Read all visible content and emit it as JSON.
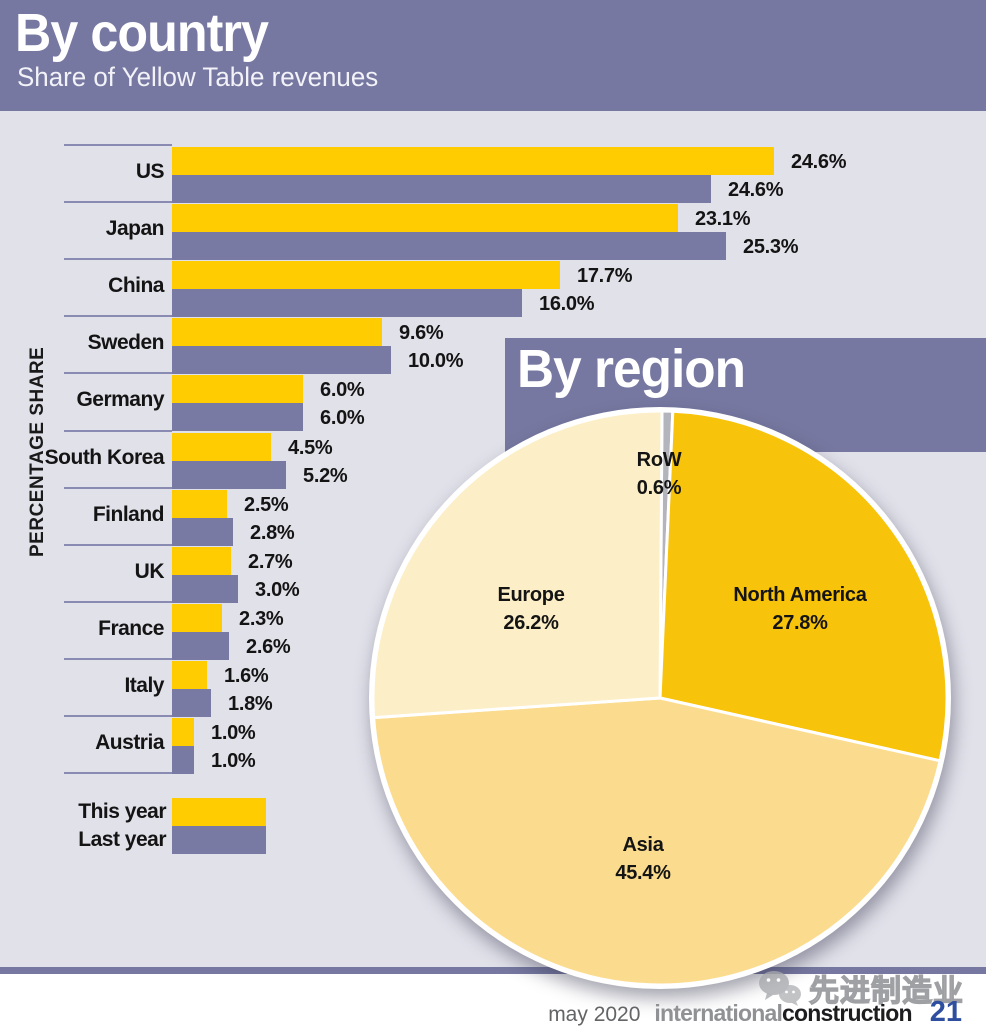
{
  "header": {
    "title": "By country",
    "subtitle": "Share of Yellow Table revenues"
  },
  "region": {
    "title": "By region"
  },
  "bar_chart": {
    "y_axis_label": "PERCENTAGE SHARE",
    "legend": [
      {
        "label": "This year",
        "color": "#ffcc02"
      },
      {
        "label": "Last year",
        "color": "#797aa4"
      }
    ]
  },
  "footer": {
    "date": "may 2020",
    "brand_light": "international",
    "brand_dark": "construction",
    "page_number": "21",
    "watermark_text": "先进制造业"
  },
  "colors": {
    "band_purple": "#7678a1",
    "panel_background": "#e1e1ea",
    "bar_this_year": "#ffcc02",
    "bar_last_year": "#797aa4",
    "separator": "#8a8bb2",
    "pie_north_america": "#f8c30b",
    "pie_asia": "#fbdc8f",
    "pie_europe": "#fceec6",
    "pie_row": "#b4b4bc",
    "page_number_blue": "#2e4f9f"
  },
  "chart_data": [
    {
      "type": "bar",
      "orientation": "horizontal",
      "title": "By country",
      "subtitle": "Share of Yellow Table revenues",
      "ylabel": "PERCENTAGE SHARE",
      "value_format": "percent_one_decimal",
      "categories": [
        "US",
        "Japan",
        "China",
        "Sweden",
        "Germany",
        "South Korea",
        "Finland",
        "UK",
        "France",
        "Italy",
        "Austria"
      ],
      "series": [
        {
          "name": "This year",
          "color": "#ffcc02",
          "values": [
            24.6,
            23.1,
            17.7,
            9.6,
            6.0,
            4.5,
            2.5,
            2.7,
            2.3,
            1.6,
            1.0
          ]
        },
        {
          "name": "Last year",
          "color": "#797aa4",
          "values": [
            24.6,
            25.3,
            16.0,
            10.0,
            6.0,
            5.2,
            2.8,
            3.0,
            2.6,
            1.8,
            1.0
          ]
        }
      ],
      "xlim": [
        0,
        26
      ],
      "grid": false,
      "legend_position": "bottom-left"
    },
    {
      "type": "pie",
      "title": "By region",
      "start_angle_deg": 0.4,
      "direction": "clockwise",
      "slices": [
        {
          "label": "RoW",
          "value": 0.6,
          "color": "#b4b4bc"
        },
        {
          "label": "North America",
          "value": 27.8,
          "color": "#f8c30b"
        },
        {
          "label": "Asia",
          "value": 45.4,
          "color": "#fbdc8f"
        },
        {
          "label": "Europe",
          "value": 26.2,
          "color": "#fceec6"
        }
      ]
    }
  ]
}
